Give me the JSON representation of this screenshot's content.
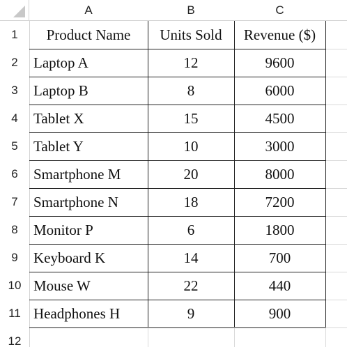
{
  "sheet": {
    "columns": [
      "A",
      "B",
      "C"
    ],
    "row_numbers": [
      1,
      2,
      3,
      4,
      5,
      6,
      7,
      8,
      9,
      10,
      11,
      12
    ],
    "table": {
      "header": [
        "Product Name",
        "Units Sold",
        "Revenue ($)"
      ],
      "rows": [
        [
          "Laptop A",
          12,
          9600
        ],
        [
          "Laptop B",
          8,
          6000
        ],
        [
          "Tablet X",
          15,
          4500
        ],
        [
          "Tablet Y",
          10,
          3000
        ],
        [
          "Smartphone M",
          20,
          8000
        ],
        [
          "Smartphone N",
          18,
          7200
        ],
        [
          "Monitor P",
          6,
          1800
        ],
        [
          "Keyboard K",
          14,
          700
        ],
        [
          "Mouse W",
          22,
          440
        ],
        [
          "Headphones H",
          9,
          900
        ]
      ]
    }
  }
}
